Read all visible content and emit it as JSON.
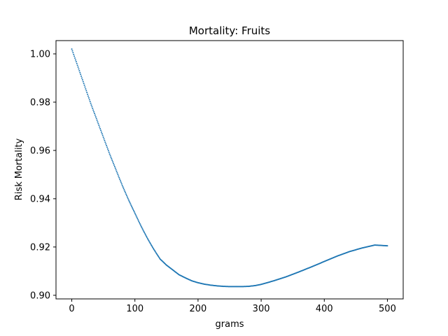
{
  "chart_data": {
    "type": "scatter",
    "title": "Mortality: Fruits",
    "xlabel": "grams",
    "ylabel": "Risk Mortality",
    "xlim": [
      -25,
      525
    ],
    "ylim": [
      0.8985,
      1.0055
    ],
    "xticks": [
      0,
      100,
      200,
      300,
      400,
      500
    ],
    "xtick_labels": [
      "0",
      "100",
      "200",
      "300",
      "400",
      "500"
    ],
    "yticks": [
      0.9,
      0.92,
      0.94,
      0.96,
      0.98,
      1.0
    ],
    "ytick_labels": [
      "0.90",
      "0.92",
      "0.94",
      "0.96",
      "0.98",
      "1.00"
    ],
    "grid": false,
    "legend": "none",
    "color": "#1f77b4",
    "series": [
      {
        "x": [
          0,
          10,
          20,
          30,
          40,
          50,
          60,
          70,
          80,
          90,
          100,
          110,
          120,
          130,
          140,
          150,
          160,
          170,
          180,
          190,
          200,
          210,
          220,
          230,
          240,
          250,
          260,
          270,
          280,
          290,
          300,
          320,
          340,
          360,
          380,
          400,
          420,
          440,
          460,
          480,
          500
        ],
        "y": [
          1.002,
          0.9945,
          0.987,
          0.9795,
          0.9725,
          0.9655,
          0.9585,
          0.952,
          0.9455,
          0.9395,
          0.934,
          0.9285,
          0.9235,
          0.919,
          0.915,
          0.9125,
          0.9105,
          0.9085,
          0.9072,
          0.906,
          0.9052,
          0.9046,
          0.9042,
          0.9039,
          0.9037,
          0.9036,
          0.9036,
          0.9036,
          0.9037,
          0.904,
          0.9045,
          0.906,
          0.9077,
          0.9097,
          0.9118,
          0.914,
          0.9162,
          0.9181,
          0.9196,
          0.9208,
          0.9205
        ]
      }
    ]
  }
}
